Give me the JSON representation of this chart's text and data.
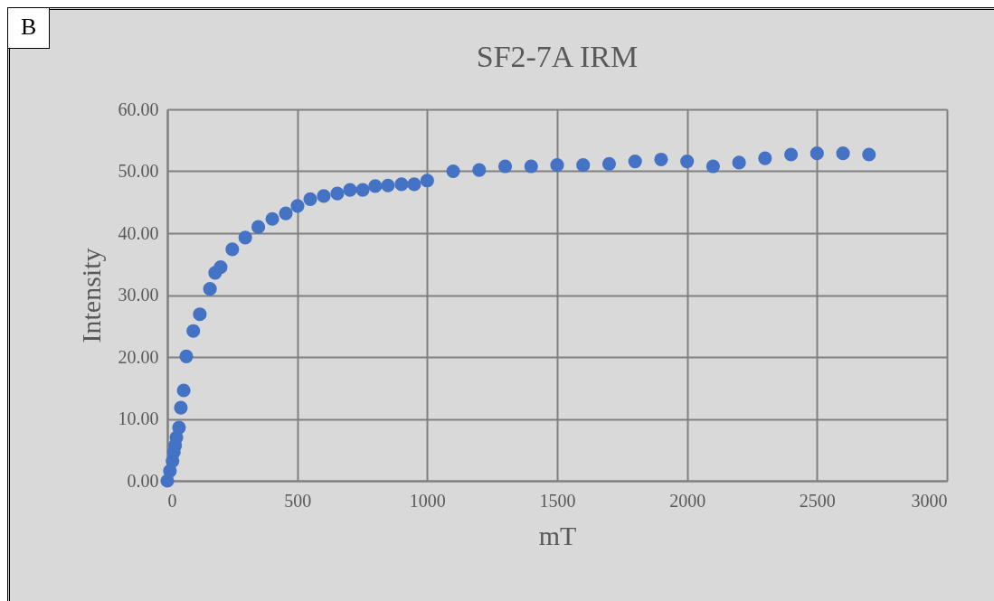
{
  "chart_data": {
    "type": "scatter",
    "title": "SF2-7A IRM",
    "xlabel": "mT",
    "ylabel": "Intensity",
    "annotations": [
      "B"
    ],
    "x": [
      0,
      10,
      20,
      25,
      30,
      35,
      45,
      52,
      63,
      73,
      100,
      125,
      164,
      184,
      205,
      250,
      300,
      350,
      404,
      456,
      501,
      550,
      602,
      654,
      703,
      752,
      800,
      849,
      901,
      950,
      1000,
      1100,
      1200,
      1300,
      1400,
      1500,
      1600,
      1700,
      1800,
      1900,
      2000,
      2100,
      2200,
      2300,
      2400,
      2500,
      2600,
      2700
    ],
    "series": [
      {
        "color": "#4472c4",
        "values": [
          0,
          1.6,
          3.2,
          4.6,
          5.7,
          7.0,
          8.6,
          11.8,
          14.6,
          20.1,
          24.2,
          26.9,
          31.0,
          33.6,
          34.5,
          37.4,
          39.3,
          41.0,
          42.3,
          43.2,
          44.4,
          45.5,
          46.0,
          46.4,
          47.0,
          47.0,
          47.6,
          47.7,
          47.9,
          47.9,
          48.5,
          50.0,
          50.2,
          50.8,
          50.8,
          51.0,
          51.0,
          51.2,
          51.6,
          51.9,
          51.6,
          50.8,
          51.4,
          52.1,
          52.7,
          52.9,
          52.9,
          52.7
        ]
      }
    ],
    "xlim": [
      0,
      3000
    ],
    "xticks": [
      0,
      500,
      1000,
      1500,
      2000,
      2500,
      3000
    ],
    "ylim": [
      0,
      60
    ],
    "yticks": [
      {
        "value": 0,
        "label": "0.00"
      },
      {
        "value": 10,
        "label": "10.00"
      },
      {
        "value": 20,
        "label": "20.00"
      },
      {
        "value": 30,
        "label": "30.00"
      },
      {
        "value": 40,
        "label": "40.00"
      },
      {
        "value": 50,
        "label": "50.00"
      },
      {
        "value": 60,
        "label": "60.00"
      }
    ],
    "grid": true,
    "marker": "circle"
  }
}
